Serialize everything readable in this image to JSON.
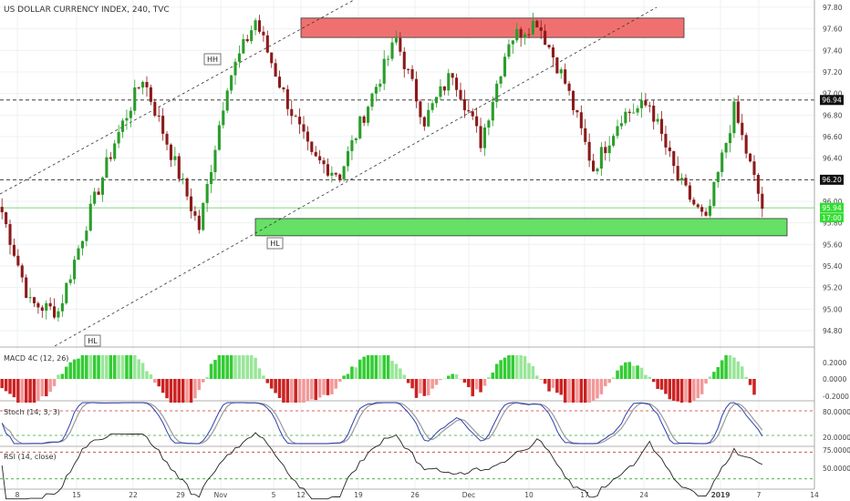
{
  "chart_title": "US DOLLAR CURRENCY INDEX, 240, TVC",
  "colors": {
    "up": "#2a9d2a",
    "down": "#8b1a1a",
    "resistance_zone": "#f07070",
    "support_zone": "#66e066",
    "macd_up_strong": "#33cc33",
    "macd_up_weak": "#99e699",
    "macd_down_strong": "#cc2222",
    "macd_down_weak": "#f29999",
    "stoch_k": "#2e3fb0",
    "stoch_d": "#9a9a9a",
    "rsi_line": "#222222",
    "band_red": "#cc3333",
    "band_green": "#33aa33"
  },
  "annotations": {
    "hh": "HH",
    "hl_1": "HL",
    "hl_2": "HL"
  },
  "price_tags": {
    "level_96_94": "96.94",
    "level_96_20": "96.20",
    "last_price": "95.94",
    "countdown": "17:00"
  },
  "pane_labels": {
    "macd": "MACD 4C (12, 26)",
    "stoch": "Stoch (14, 3, 3)",
    "rsi": "RSI (14, close)"
  },
  "chart_data": {
    "type": "candlestick",
    "title": "US DOLLAR CURRENCY INDEX, 240, TVC",
    "price_axis": {
      "ticks": [
        "97.80",
        "97.60",
        "97.40",
        "97.20",
        "97.00",
        "96.80",
        "96.60",
        "96.40",
        "96.20",
        "96.00",
        "95.80",
        "95.60",
        "95.40",
        "95.20",
        "95.00",
        "94.80"
      ],
      "range": [
        94.6,
        97.9
      ]
    },
    "time_axis": {
      "ticks": [
        "8",
        "15",
        "22",
        "29",
        "Nov",
        "5",
        "12",
        "19",
        "26",
        "Dec",
        "10",
        "17",
        "24",
        "2019",
        "7",
        "14"
      ]
    },
    "key_points": [
      {
        "date": "Oct 8",
        "close": 95.9
      },
      {
        "date": "Oct 15",
        "close": 95.05
      },
      {
        "date": "Oct 17",
        "close": 94.98
      },
      {
        "date": "Oct 22",
        "close": 95.8
      },
      {
        "date": "Oct 26",
        "close": 96.55
      },
      {
        "date": "Oct 31",
        "close": 97.15
      },
      {
        "date": "Nov 2",
        "close": 96.45
      },
      {
        "date": "Nov 7",
        "close": 95.75
      },
      {
        "date": "Nov 11",
        "close": 97.1
      },
      {
        "date": "Nov 13",
        "close": 97.68
      },
      {
        "date": "Nov 16",
        "close": 97.0
      },
      {
        "date": "Nov 20",
        "close": 96.4
      },
      {
        "date": "Nov 23",
        "close": 96.25
      },
      {
        "date": "Nov 28",
        "close": 96.9
      },
      {
        "date": "Nov 30",
        "close": 97.5
      },
      {
        "date": "Dec 3",
        "close": 96.75
      },
      {
        "date": "Dec 6",
        "close": 97.2
      },
      {
        "date": "Dec 10",
        "close": 96.55
      },
      {
        "date": "Dec 12",
        "close": 97.5
      },
      {
        "date": "Dec 14",
        "close": 97.68
      },
      {
        "date": "Dec 17",
        "close": 97.1
      },
      {
        "date": "Dec 20",
        "close": 96.3
      },
      {
        "date": "Dec 24",
        "close": 96.8
      },
      {
        "date": "Dec 27",
        "close": 96.9
      },
      {
        "date": "Dec 31",
        "close": 96.2
      },
      {
        "date": "Jan 2",
        "close": 95.8
      },
      {
        "date": "Jan 4",
        "close": 96.85
      },
      {
        "date": "Jan 8",
        "close": 95.94
      }
    ],
    "last_price": 95.94,
    "horizontal_levels": [
      96.94,
      96.2
    ],
    "zones": [
      {
        "name": "resistance",
        "from": 97.52,
        "to": 97.7
      },
      {
        "name": "support",
        "from": 95.68,
        "to": 95.84
      }
    ],
    "indicators": {
      "macd": {
        "params": "12, 26",
        "ticks": [
          "0.2000",
          "0.0000",
          "-0.2000"
        ]
      },
      "stoch": {
        "params": "14, 3, 3",
        "ticks": [
          "80.0000",
          "20.0000"
        ],
        "bands": [
          80,
          20
        ]
      },
      "rsi": {
        "params": "14, close",
        "ticks": [
          "75.0000",
          "50.0000"
        ],
        "bands": [
          70,
          30
        ]
      }
    }
  }
}
